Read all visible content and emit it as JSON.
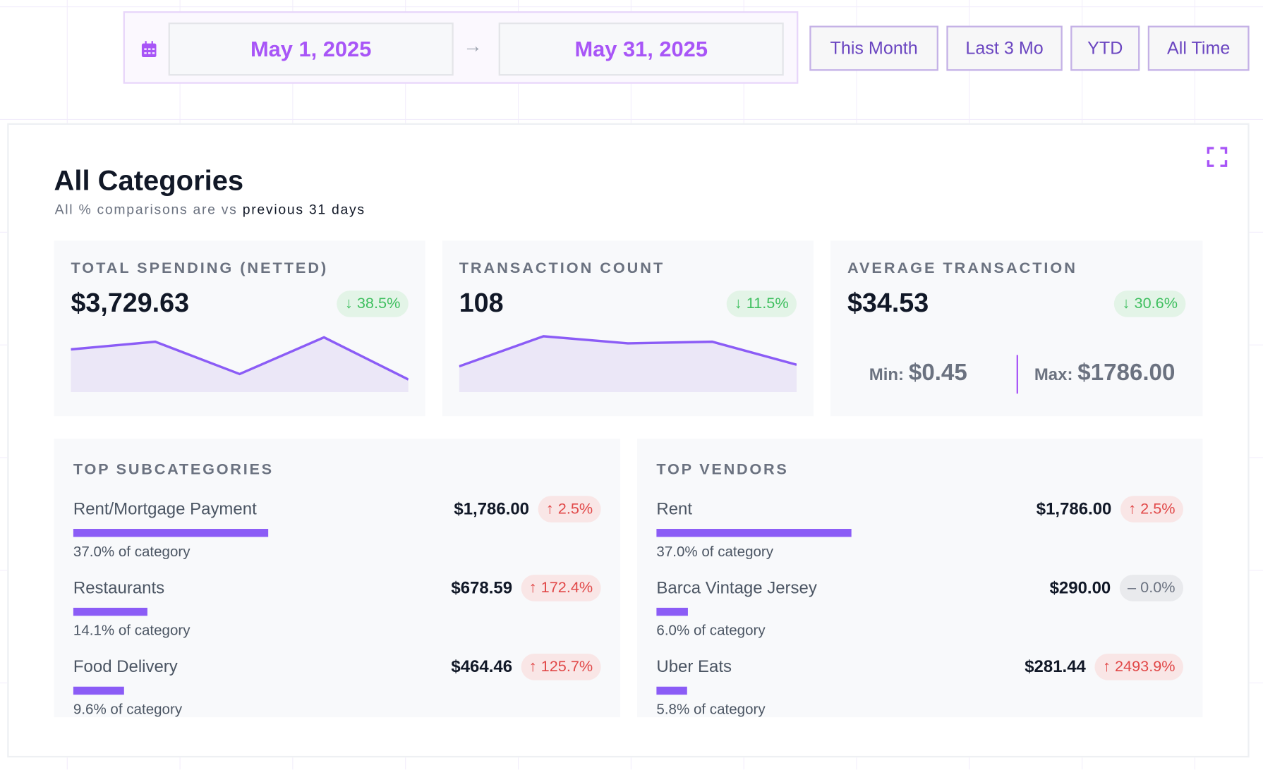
{
  "date_range": {
    "icon": "calendar-icon",
    "start": "May 1, 2025",
    "separator_icon": "arrow-right-icon",
    "end": "May 31, 2025"
  },
  "presets": [
    "This Month",
    "Last 3 Mo",
    "YTD",
    "All Time"
  ],
  "panel": {
    "title": "All Categories",
    "subtitle_prefix": "All % comparisons are vs ",
    "subtitle_emphasis": "previous 31 days",
    "expand_icon": "expand-icon"
  },
  "colors": {
    "accent": "#8b5cf6",
    "brand": "#a855f7",
    "down": "#3fbf5f",
    "up": "#e14848"
  },
  "stats": [
    {
      "label": "TOTAL SPENDING (NETTED)",
      "value": "$3,729.63",
      "change": "↓ 38.5%",
      "trend": "down",
      "sparkline": [
        0.72,
        0.86,
        0.27,
        0.94,
        0.17
      ]
    },
    {
      "label": "TRANSACTION COUNT",
      "value": "108",
      "change": "↓ 11.5%",
      "trend": "down",
      "sparkline": [
        0.41,
        0.96,
        0.83,
        0.86,
        0.44
      ]
    },
    {
      "label": "AVERAGE TRANSACTION",
      "value": "$34.53",
      "change": "↓ 30.6%",
      "trend": "down",
      "min_label": "Min:",
      "min": "$0.45",
      "max_label": "Max:",
      "max": "$1786.00"
    }
  ],
  "top_subcategories": {
    "title": "TOP SUBCATEGORIES",
    "items": [
      {
        "name": "Rent/Mortgage Payment",
        "amount": "$1,786.00",
        "change": "↑ 2.5%",
        "trend": "up",
        "share": 37.0,
        "share_label": "37.0% of category"
      },
      {
        "name": "Restaurants",
        "amount": "$678.59",
        "change": "↑ 172.4%",
        "trend": "up",
        "share": 14.1,
        "share_label": "14.1% of category"
      },
      {
        "name": "Food Delivery",
        "amount": "$464.46",
        "change": "↑ 125.7%",
        "trend": "up",
        "share": 9.6,
        "share_label": "9.6% of category"
      }
    ]
  },
  "top_vendors": {
    "title": "TOP VENDORS",
    "items": [
      {
        "name": "Rent",
        "amount": "$1,786.00",
        "change": "↑ 2.5%",
        "trend": "up",
        "share": 37.0,
        "share_label": "37.0% of category"
      },
      {
        "name": "Barca Vintage Jersey",
        "amount": "$290.00",
        "change": "– 0.0%",
        "trend": "flat",
        "share": 6.0,
        "share_label": "6.0% of category"
      },
      {
        "name": "Uber Eats",
        "amount": "$281.44",
        "change": "↑ 2493.9%",
        "trend": "up",
        "share": 5.8,
        "share_label": "5.8% of category"
      }
    ]
  }
}
